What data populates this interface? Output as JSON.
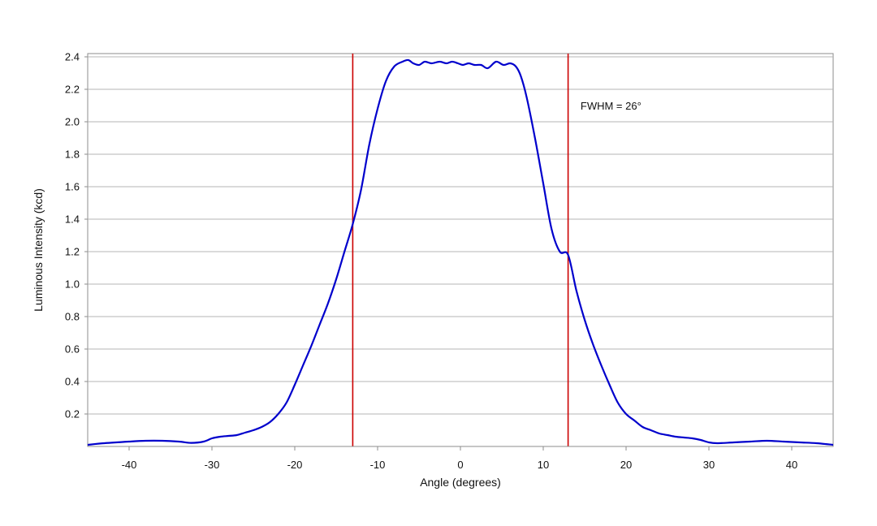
{
  "chart_data": {
    "type": "line",
    "title": "",
    "xlabel": "Angle (degrees)",
    "ylabel": "Luminous Intensity (kcd)",
    "xlim": [
      -45,
      45
    ],
    "ylim": [
      0,
      2.42
    ],
    "grid": true,
    "x_ticks": [
      -40,
      -30,
      -20,
      -10,
      0,
      10,
      20,
      30,
      40
    ],
    "y_ticks": [
      0.2,
      0.4,
      0.6,
      0.8,
      1.0,
      1.2,
      1.4,
      1.6,
      1.8,
      2.0,
      2.2,
      2.4
    ],
    "x_tick_labels": [
      "-40",
      "-30",
      "-20",
      "-10",
      "0",
      "10",
      "20",
      "30",
      "40"
    ],
    "y_tick_labels": [
      "0.2",
      "0.4",
      "0.6",
      "0.8",
      "1.0",
      "1.2",
      "1.4",
      "1.6",
      "1.8",
      "2.0",
      "2.2",
      "2.4"
    ],
    "series": [
      {
        "color": "#0000cc",
        "x": [
          -45,
          -43,
          -40,
          -38,
          -36,
          -34,
          -32.5,
          -31,
          -30,
          -29,
          -28,
          -27,
          -26,
          -25,
          -24,
          -23,
          -22,
          -21,
          -20,
          -19,
          -18,
          -17,
          -16,
          -15,
          -14,
          -13,
          -12,
          -11,
          -10,
          -9,
          -8,
          -7,
          -6.3,
          -5.7,
          -5,
          -4.3,
          -3.5,
          -2.5,
          -1.7,
          -1,
          -0.3,
          0.3,
          1,
          1.7,
          2.5,
          3.3,
          4.3,
          5.2,
          6,
          6.7,
          7.3,
          8,
          9,
          10,
          11,
          12,
          13,
          14,
          15,
          16,
          17,
          18,
          19,
          20,
          21,
          22,
          23,
          24,
          25,
          26,
          27,
          28,
          29,
          30,
          31,
          33,
          35,
          37,
          39,
          41,
          43,
          45
        ],
        "y": [
          0.01,
          0.02,
          0.03,
          0.035,
          0.035,
          0.03,
          0.022,
          0.03,
          0.05,
          0.06,
          0.065,
          0.07,
          0.085,
          0.1,
          0.12,
          0.15,
          0.2,
          0.27,
          0.38,
          0.5,
          0.62,
          0.75,
          0.88,
          1.03,
          1.2,
          1.37,
          1.58,
          1.86,
          2.08,
          2.25,
          2.34,
          2.37,
          2.38,
          2.36,
          2.35,
          2.37,
          2.36,
          2.37,
          2.36,
          2.37,
          2.36,
          2.35,
          2.36,
          2.35,
          2.35,
          2.33,
          2.37,
          2.35,
          2.36,
          2.34,
          2.28,
          2.15,
          1.9,
          1.62,
          1.34,
          1.2,
          1.18,
          0.96,
          0.78,
          0.63,
          0.5,
          0.38,
          0.27,
          0.2,
          0.16,
          0.12,
          0.1,
          0.08,
          0.07,
          0.06,
          0.055,
          0.05,
          0.04,
          0.025,
          0.02,
          0.025,
          0.03,
          0.035,
          0.03,
          0.025,
          0.02,
          0.01
        ]
      }
    ],
    "reference_lines": [
      {
        "axis": "x",
        "value": -13,
        "color": "#cc0000"
      },
      {
        "axis": "x",
        "value": 13,
        "color": "#cc0000"
      }
    ],
    "annotations": [
      {
        "text": "FWHM = 26°",
        "x": 14.5,
        "y": 2.1
      }
    ]
  }
}
